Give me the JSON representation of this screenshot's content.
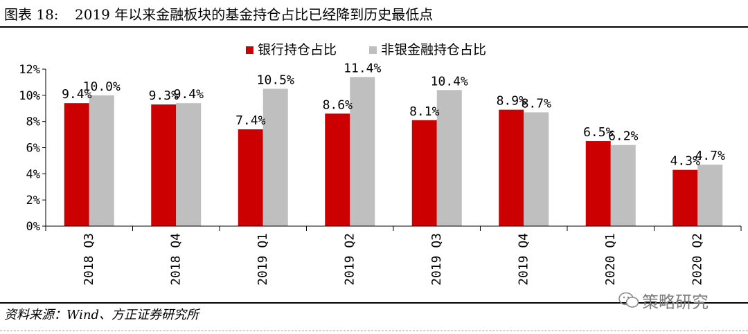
{
  "header": {
    "figure_label": "图表 18:",
    "title": "2019 年以来金融板块的基金持仓占比已经降到历史最低点"
  },
  "source": {
    "text": "资料来源：Wind、方正证券研究所"
  },
  "watermark": {
    "text": "策略研究",
    "icon": "wechat-icon"
  },
  "colors": {
    "bank": "#cc0000",
    "non_bank": "#bfbfbf",
    "axis": "#000000"
  },
  "chart_data": {
    "type": "bar",
    "title": "",
    "xlabel": "",
    "ylabel": "",
    "categories": [
      "2018  Q3",
      "2018  Q4",
      "2019  Q1",
      "2019  Q2",
      "2019  Q3",
      "2019  Q4",
      "2020  Q1",
      "2020  Q2"
    ],
    "series": [
      {
        "name": "银行持仓占比",
        "values": [
          9.4,
          9.3,
          7.4,
          8.6,
          8.1,
          8.9,
          6.5,
          4.3
        ],
        "labels": [
          "9.4%",
          "9.3%",
          "7.4%",
          "8.6%",
          "8.1%",
          "8.9%",
          "6.5%",
          "4.3%"
        ]
      },
      {
        "name": "非银金融持仓占比",
        "values": [
          10.0,
          9.4,
          10.5,
          11.4,
          10.4,
          8.7,
          6.2,
          4.7
        ],
        "labels": [
          "10.0%",
          "9.4%",
          "10.5%",
          "11.4%",
          "10.4%",
          "8.7%",
          "6.2%",
          "4.7%"
        ]
      }
    ],
    "yticks": [
      "0%",
      "2%",
      "4%",
      "6%",
      "8%",
      "10%",
      "12%"
    ],
    "ylim": [
      0,
      12
    ],
    "legend_position": "top-center",
    "grid": false
  }
}
